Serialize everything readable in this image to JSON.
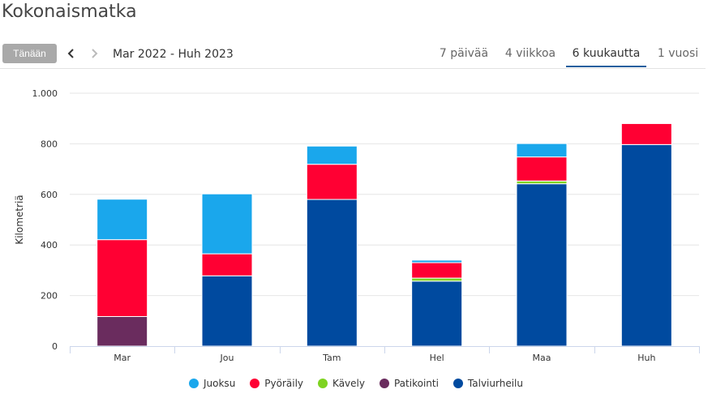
{
  "header": {
    "title": "Kokonaismatka"
  },
  "toolbar": {
    "today_label": "Tänään",
    "prev_icon": "chevron-left-icon",
    "next_icon": "chevron-right-icon",
    "range_label": "Mar 2022 - Huh 2023",
    "tabs": [
      {
        "label": "7 päivää",
        "active": false
      },
      {
        "label": "4 viikkoa",
        "active": false
      },
      {
        "label": "6 kuukautta",
        "active": true
      },
      {
        "label": "1 vuosi",
        "active": false
      }
    ]
  },
  "chart_data": {
    "type": "bar",
    "stacked": true,
    "ylabel": "Kilometriä",
    "ylim": [
      0,
      1000
    ],
    "yticks": [
      0,
      200,
      400,
      600,
      800,
      1000
    ],
    "ytick_labels": [
      "0",
      "200",
      "400",
      "600",
      "800",
      "1.000"
    ],
    "categories": [
      "Mar",
      "Jou",
      "Tam",
      "Hel",
      "Maa",
      "Huh"
    ],
    "legend_position": "bottom",
    "grid": true,
    "series": [
      {
        "name": "Juoksu",
        "color": "#1aa7ec",
        "values": [
          160,
          237,
          72,
          10,
          53,
          0
        ]
      },
      {
        "name": "Pyöräily",
        "color": "#ff0033",
        "values": [
          304,
          87,
          139,
          61,
          95,
          83
        ]
      },
      {
        "name": "Kävely",
        "color": "#7ed321",
        "values": [
          0,
          0,
          0,
          12,
          11,
          0
        ]
      },
      {
        "name": "Patikointi",
        "color": "#6a2c5e",
        "values": [
          117,
          0,
          0,
          0,
          0,
          0
        ]
      },
      {
        "name": "Talviurheilu",
        "color": "#004a9f",
        "values": [
          0,
          278,
          580,
          257,
          642,
          797
        ]
      }
    ]
  }
}
